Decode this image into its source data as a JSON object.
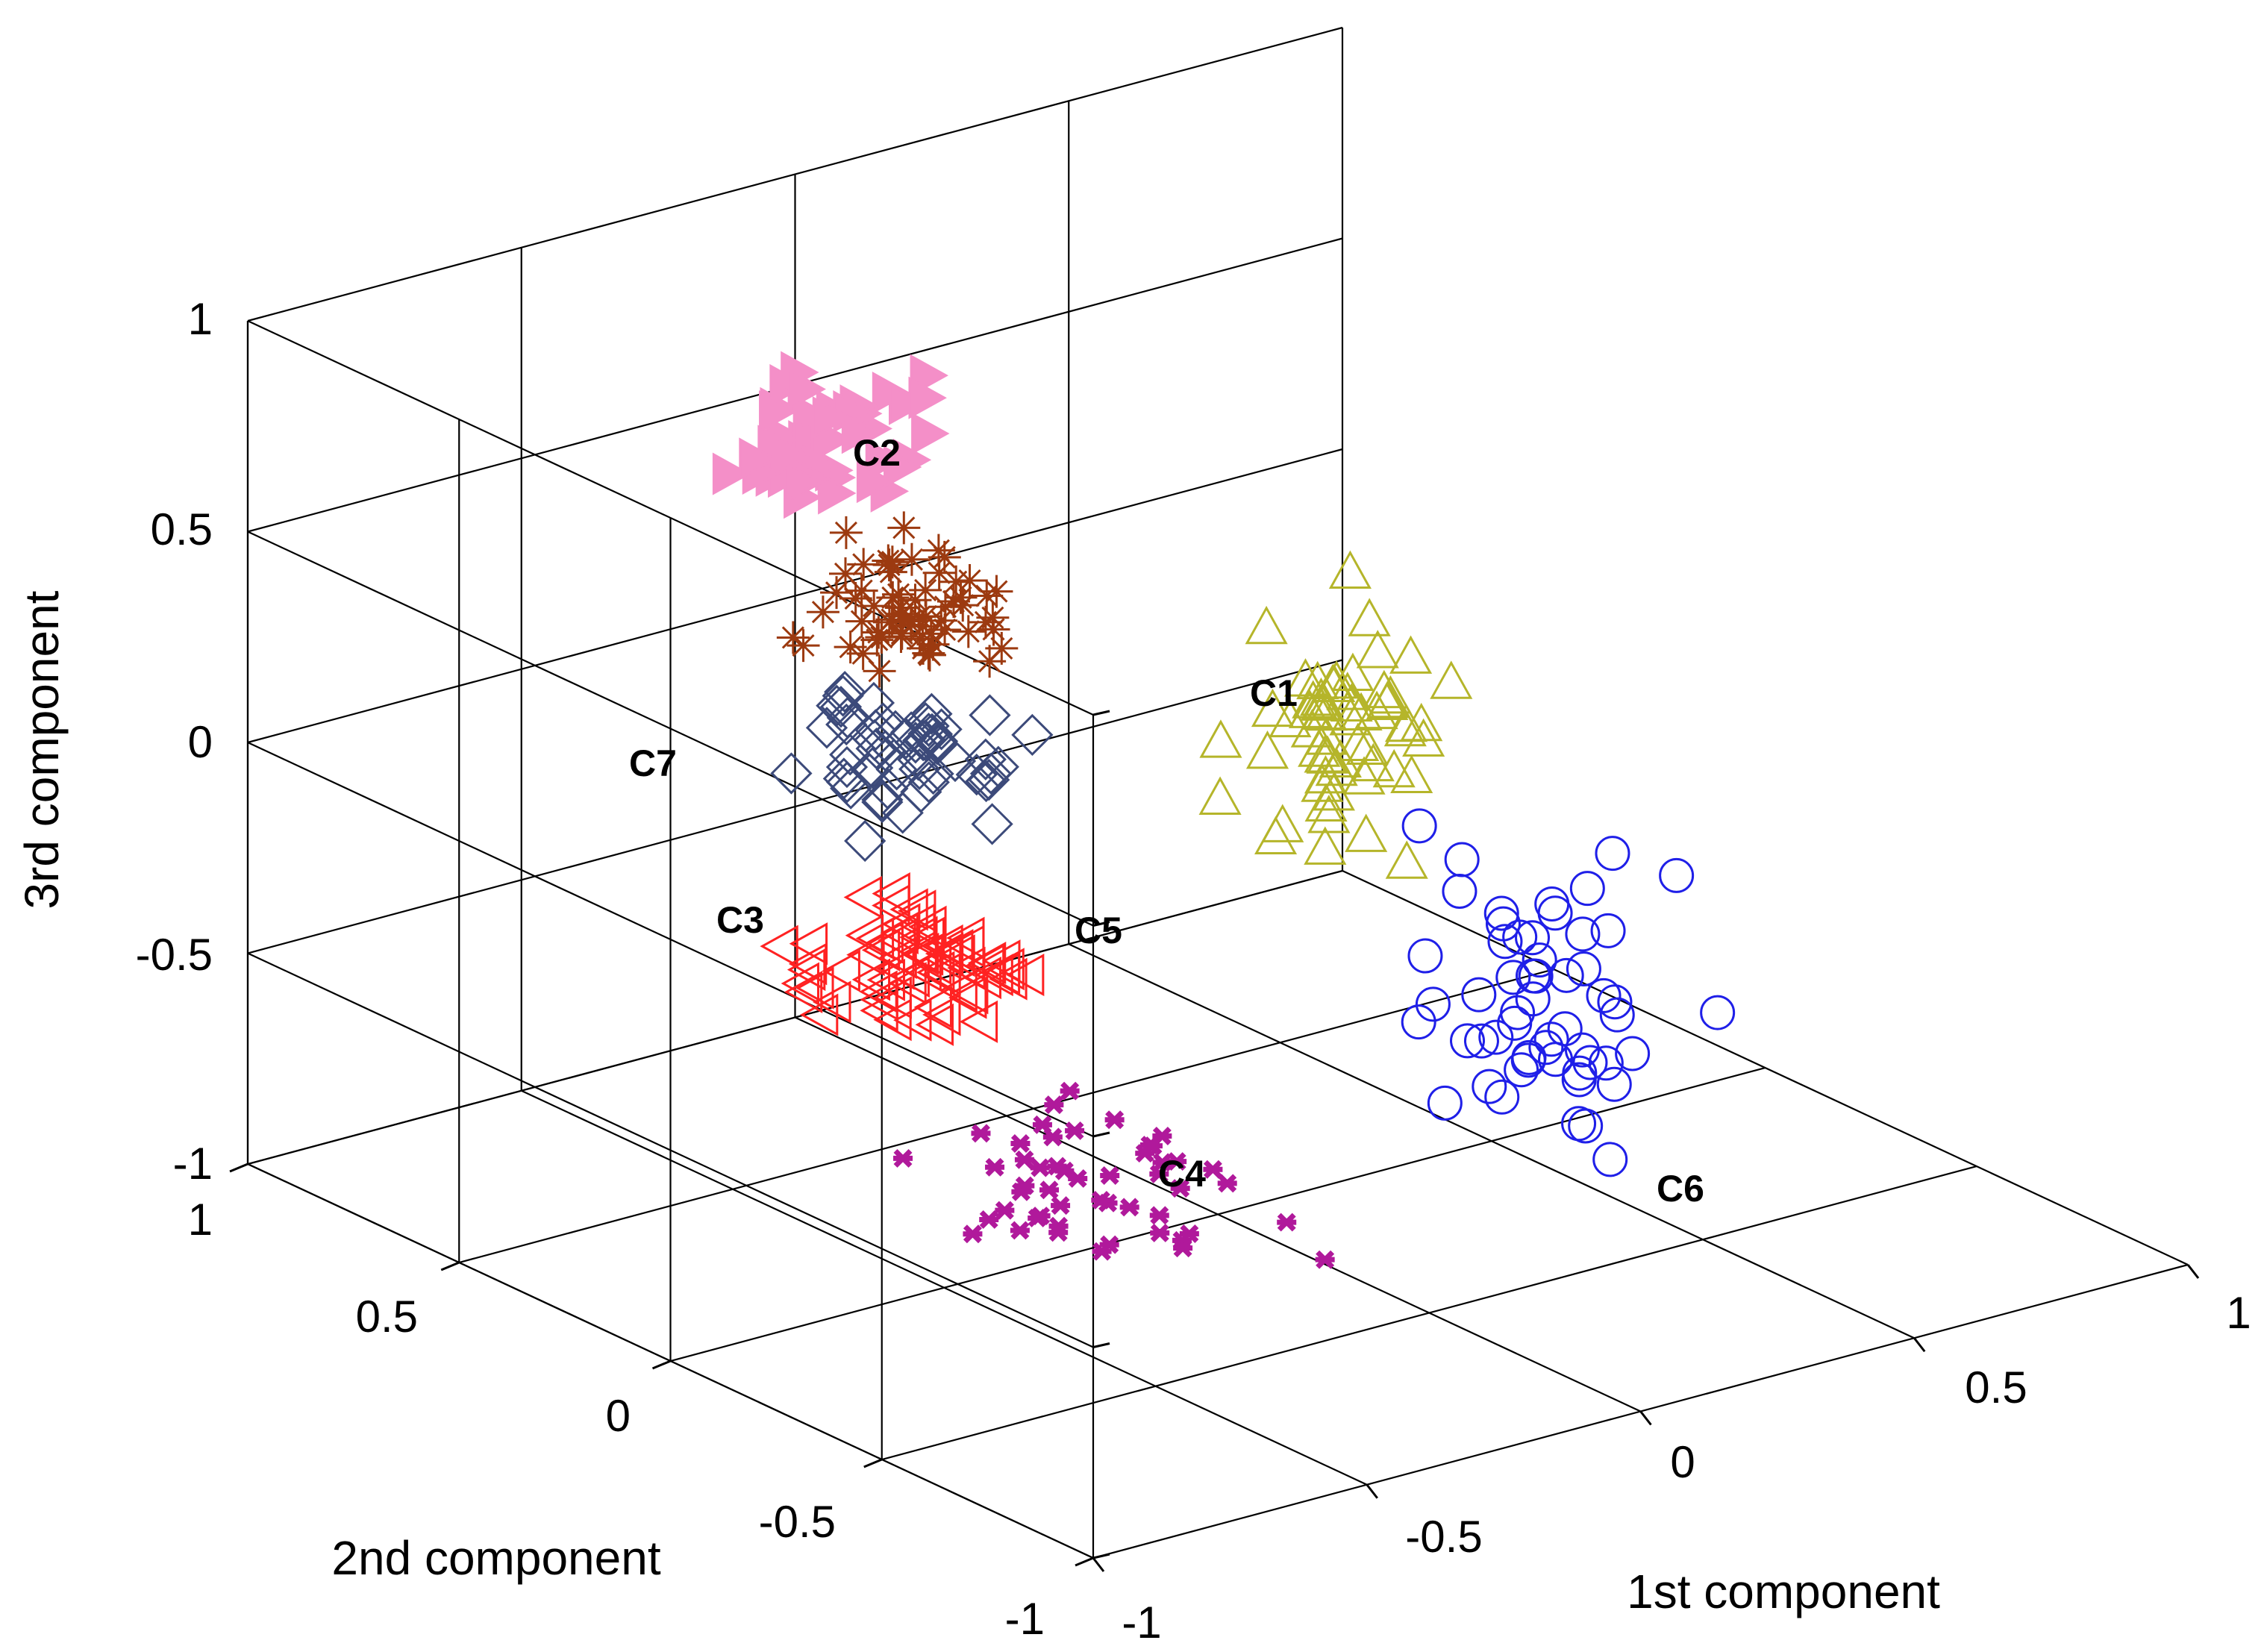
{
  "chart_data": {
    "type": "scatter",
    "dimensions": 3,
    "title": "",
    "xlabel": "1st component",
    "ylabel": "2nd component",
    "zlabel": "3rd component",
    "xlim": [
      -1,
      1
    ],
    "ylim": [
      -1,
      1
    ],
    "zlim": [
      -1,
      1
    ],
    "x_ticks": [
      "-1",
      "-0.5",
      "0",
      "0.5",
      "1"
    ],
    "y_ticks": [
      "-1",
      "-0.5",
      "0",
      "0.5",
      "1"
    ],
    "z_ticks": [
      "-1",
      "-0.5",
      "0",
      "0.5",
      "1"
    ],
    "grid": true,
    "view": "3d-perspective",
    "clusters": [
      {
        "name": "C1",
        "marker": "triangle-up",
        "color": "#b5b52a",
        "filled": false,
        "count": 60,
        "center": [
          0.3,
          0.1,
          0.0
        ],
        "spread": [
          0.12,
          0.1,
          0.22
        ]
      },
      {
        "name": "C2",
        "marker": "triangle-right",
        "color": "#f48fc8",
        "filled": true,
        "count": 45,
        "center": [
          -0.15,
          0.7,
          0.55
        ],
        "spread": [
          0.1,
          0.12,
          0.12
        ]
      },
      {
        "name": "C3",
        "marker": "diamond",
        "color": "#3c4a7a",
        "filled": false,
        "count": 55,
        "center": [
          -0.2,
          0.45,
          -0.05
        ],
        "spread": [
          0.12,
          0.15,
          0.12
        ]
      },
      {
        "name": "C4",
        "marker": "x-star",
        "color": "#b0199b",
        "filled": false,
        "count": 50,
        "center": [
          -0.25,
          -0.1,
          -0.8
        ],
        "spread": [
          0.2,
          0.25,
          0.1
        ]
      },
      {
        "name": "C5",
        "marker": "triangle-left",
        "color": "#ff2222",
        "filled": false,
        "count": 70,
        "center": [
          -0.25,
          0.35,
          -0.5
        ],
        "spread": [
          0.12,
          0.15,
          0.1
        ]
      },
      {
        "name": "C6",
        "marker": "circle",
        "color": "#1f1fe8",
        "filled": false,
        "count": 55,
        "center": [
          0.55,
          -0.05,
          -0.7
        ],
        "spread": [
          0.15,
          0.2,
          0.3
        ]
      },
      {
        "name": "C7",
        "marker": "asterisk-plus",
        "color": "#9c3a10",
        "filled": false,
        "count": 65,
        "center": [
          -0.05,
          0.65,
          0.15
        ],
        "spread": [
          0.12,
          0.15,
          0.12
        ]
      }
    ],
    "cluster_labels": [
      "C1",
      "C2",
      "C3",
      "C4",
      "C5",
      "C6",
      "C7"
    ]
  }
}
